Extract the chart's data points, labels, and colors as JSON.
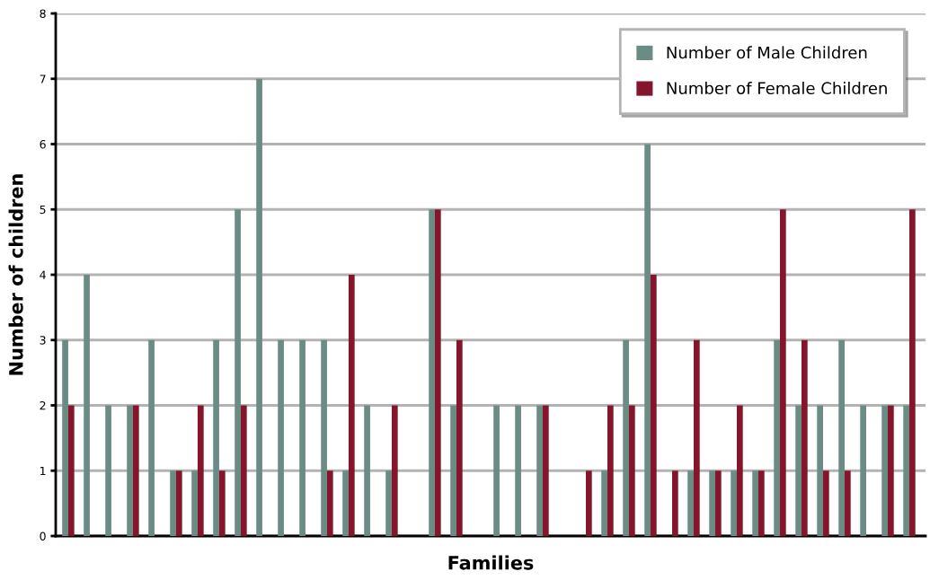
{
  "chart_data": {
    "type": "bar",
    "xlabel": "Families",
    "ylabel": "Number of children",
    "categories": [
      null,
      null,
      null,
      null,
      null,
      null,
      null,
      null,
      null,
      null,
      null,
      null,
      null,
      null,
      null,
      null,
      null,
      null,
      null,
      null,
      null,
      null,
      null,
      null,
      null,
      null,
      null,
      null,
      null,
      null,
      null,
      null,
      null,
      null,
      null,
      null,
      null,
      null,
      null,
      null
    ],
    "series": [
      {
        "name": "Number of Male Children",
        "color": "#6b8c85",
        "values": [
          3,
          4,
          2,
          2,
          3,
          1,
          1,
          3,
          5,
          7,
          3,
          3,
          3,
          1,
          2,
          1,
          0,
          5,
          2,
          0,
          2,
          2,
          2,
          0,
          0,
          1,
          3,
          6,
          0,
          1,
          1,
          1,
          1,
          3,
          2,
          2,
          3,
          2,
          2,
          2
        ]
      },
      {
        "name": "Number of Female Children",
        "color": "#85152b",
        "values": [
          2,
          0,
          0,
          2,
          0,
          1,
          2,
          1,
          2,
          0,
          0,
          0,
          1,
          4,
          0,
          2,
          0,
          5,
          3,
          0,
          0,
          0,
          2,
          0,
          1,
          2,
          2,
          4,
          1,
          3,
          1,
          2,
          1,
          5,
          3,
          1,
          1,
          0,
          2,
          5
        ]
      }
    ],
    "ylim": [
      0,
      8
    ],
    "yticks": [
      0,
      1,
      2,
      3,
      4,
      5,
      6,
      7,
      8
    ],
    "grid": "y",
    "legend": "top right"
  }
}
